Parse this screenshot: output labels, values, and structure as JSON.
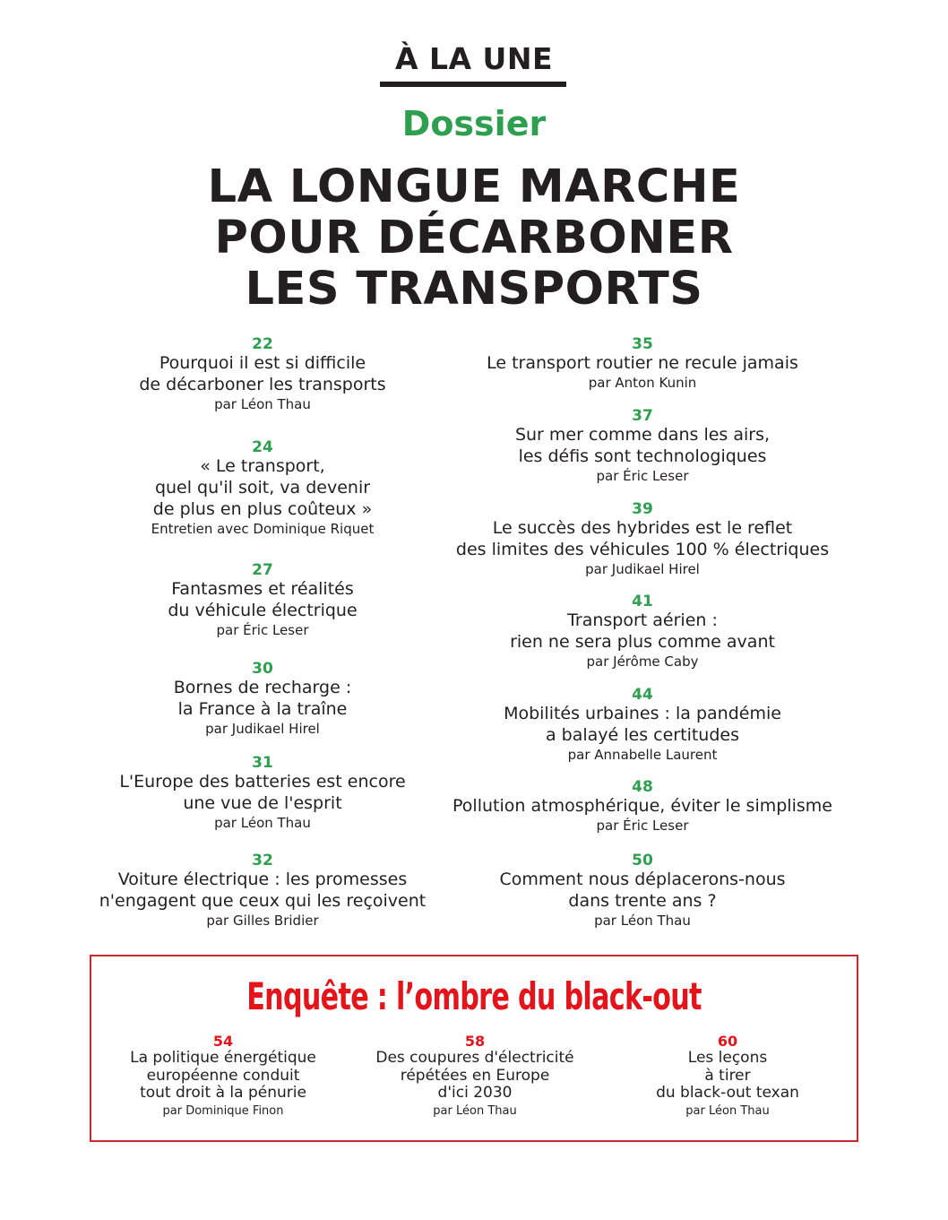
{
  "header": {
    "rubric": "À LA UNE",
    "section": "Dossier",
    "headline_lines": [
      "LA LONGUE MARCHE",
      "POUR DÉCARBONER",
      "LES TRANSPORTS"
    ]
  },
  "colors": {
    "accent_green": "#2e9e4f",
    "accent_red": "#e5141b",
    "box_border": "#c8282e",
    "text": "#231f20"
  },
  "dossier_left": [
    {
      "page": "22",
      "title": [
        "Pourquoi il est si difficile",
        "de décarboner les transports"
      ],
      "byline": "par Léon Thau"
    },
    {
      "page": "24",
      "title": [
        "« Le transport,",
        "quel qu'il soit, va devenir",
        "de plus en plus coûteux »"
      ],
      "byline": "Entretien avec Dominique Riquet"
    },
    {
      "page": "27",
      "title": [
        "Fantasmes et réalités",
        "du véhicule électrique"
      ],
      "byline": "par Éric Leser"
    },
    {
      "page": "30",
      "title": [
        "Bornes de recharge :",
        "la France à la traîne"
      ],
      "byline": "par Judikael Hirel"
    },
    {
      "page": "31",
      "title": [
        "L'Europe des batteries est encore",
        "une vue de l'esprit"
      ],
      "byline": "par Léon Thau"
    },
    {
      "page": "32",
      "title": [
        "Voiture électrique : les promesses",
        "n'engagent que ceux qui les reçoivent"
      ],
      "byline": "par Gilles Bridier"
    }
  ],
  "dossier_right": [
    {
      "page": "35",
      "title": [
        "Le transport routier ne recule jamais"
      ],
      "byline": "par Anton Kunin"
    },
    {
      "page": "37",
      "title": [
        "Sur mer comme dans les airs,",
        "les défis sont technologiques"
      ],
      "byline": "par Éric Leser"
    },
    {
      "page": "39",
      "title": [
        "Le succès des hybrides est le reflet",
        "des limites des véhicules 100 % électriques"
      ],
      "byline": "par Judikael Hirel"
    },
    {
      "page": "41",
      "title": [
        "Transport aérien :",
        "rien ne sera plus comme avant"
      ],
      "byline": "par Jérôme Caby"
    },
    {
      "page": "44",
      "title": [
        "Mobilités urbaines : la pandémie",
        "a balayé les certitudes"
      ],
      "byline": "par Annabelle Laurent"
    },
    {
      "page": "48",
      "title": [
        "Pollution atmosphérique, éviter le simplisme"
      ],
      "byline": "par Éric Leser"
    },
    {
      "page": "50",
      "title": [
        "Comment nous déplacerons-nous",
        "dans trente ans ?"
      ],
      "byline": "par Léon Thau"
    }
  ],
  "enquete": {
    "title": "Enquête : l’ombre du black-out",
    "items": [
      {
        "page": "54",
        "title": [
          "La politique énergétique",
          "européenne conduit",
          "tout droit à la pénurie"
        ],
        "byline": "par Dominique Finon"
      },
      {
        "page": "58",
        "title": [
          "Des coupures d'électricité",
          "répétées en Europe",
          "d'ici 2030"
        ],
        "byline": "par Léon Thau"
      },
      {
        "page": "60",
        "title": [
          "Les leçons",
          "à tirer",
          "du black-out texan"
        ],
        "byline": "par Léon Thau"
      }
    ]
  }
}
